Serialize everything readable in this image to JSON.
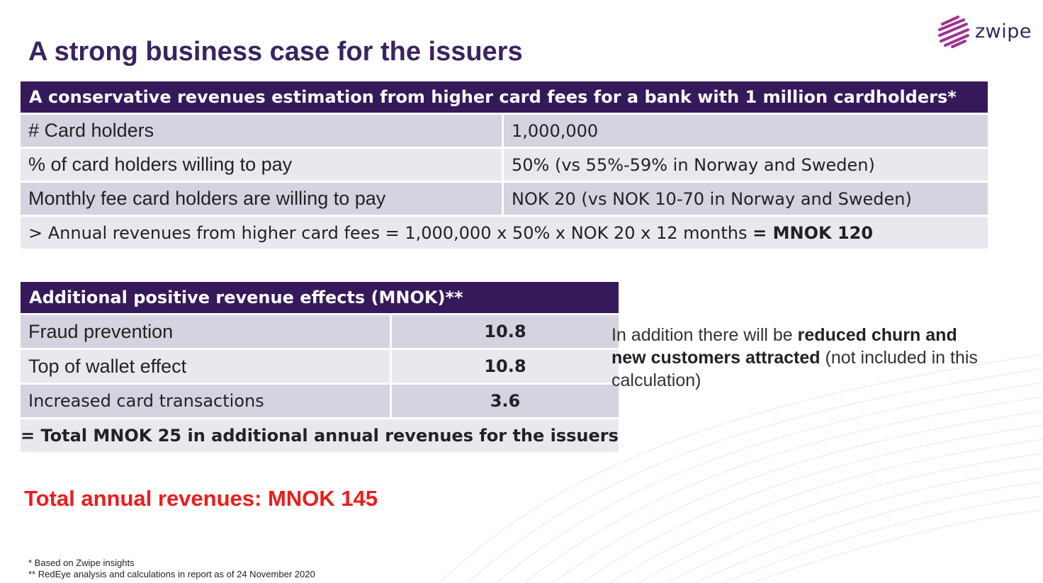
{
  "title": "A strong business case for the issuers",
  "logo": {
    "text": "zwipe",
    "icon": "zwipe-swirl-logo"
  },
  "fees_table": {
    "header": "A conservative revenues estimation from higher card fees for a bank with 1 million cardholders*",
    "rows": [
      {
        "label": "# Card holders",
        "value": "1,000,000"
      },
      {
        "label": "% of card holders willing to pay",
        "value": "50% (vs 55%-59% in Norway and Sweden)"
      },
      {
        "label": "Monthly fee card holders are willing to pay",
        "value": "NOK 20 (vs NOK 10-70 in Norway and Sweden)"
      }
    ],
    "summary": {
      "text": "> Annual revenues from higher card fees = 1,000,000 x 50% x NOK 20 x 12 months",
      "bold": "= MNOK 120"
    }
  },
  "effects_table": {
    "header": "Additional positive revenue effects (MNOK)**",
    "rows": [
      {
        "label": "Fraud prevention",
        "value": "10.8"
      },
      {
        "label": "Top of wallet effect",
        "value": "10.8"
      },
      {
        "label": "Increased card transactions",
        "value": "3.6"
      }
    ],
    "total": "= Total MNOK 25 in additional annual revenues for the issuers"
  },
  "side_note": {
    "prefix": "In addition there will be ",
    "bold": "reduced churn and new customers attracted",
    "suffix": " (not included in this calculation)"
  },
  "total_annual": "Total annual revenues: MNOK 145",
  "footnotes": [
    "* Based on Zwipe insights",
    "** RedEye analysis and calculations in report as of 24 November 2020"
  ],
  "colors": {
    "header_bg": "#35195a",
    "title": "#3b2360",
    "row_dark": "#d7d2df",
    "row_light": "#eae8ee",
    "total_red": "#ee1c1c"
  }
}
